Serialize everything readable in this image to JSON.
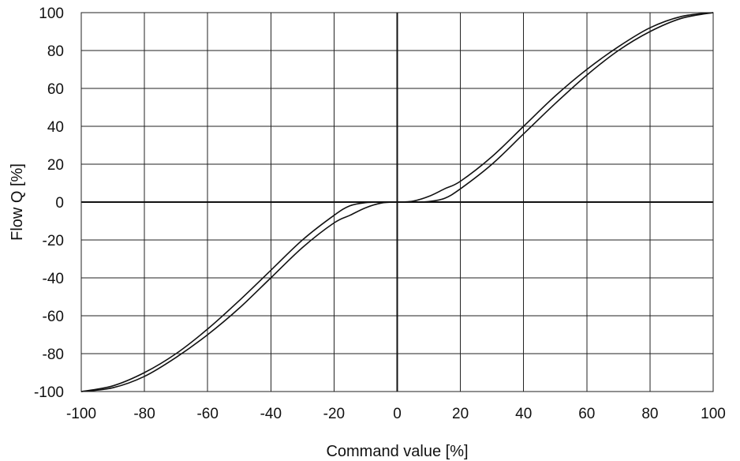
{
  "chart_data": {
    "type": "line",
    "title": "",
    "xlabel": "Command value [%]",
    "ylabel": "Flow Q [%]",
    "xlim": [
      -100,
      100
    ],
    "ylim": [
      -100,
      100
    ],
    "x_ticks": [
      "-100",
      "-80",
      "-60",
      "-40",
      "-20",
      "0",
      "20",
      "40",
      "60",
      "80",
      "100"
    ],
    "y_ticks": [
      "100",
      "80",
      "60",
      "40",
      "20",
      "0",
      "-20",
      "-40",
      "-60",
      "-80",
      "-100"
    ],
    "grid": true,
    "line_color": "#111111",
    "series": [
      {
        "x": [
          -100,
          -90,
          -80,
          -70,
          -60,
          -50,
          -40,
          -30,
          -20,
          -15,
          -10,
          -5,
          0,
          5,
          10,
          15,
          20,
          30,
          40,
          50,
          60,
          70,
          80,
          90,
          100
        ],
        "y": [
          -100,
          -97,
          -90,
          -80,
          -67,
          -52,
          -36,
          -20,
          -7,
          -2,
          -0.3,
          0,
          0,
          0.5,
          3,
          7,
          11,
          24,
          40,
          56,
          70,
          82,
          92,
          98,
          100
        ]
      },
      {
        "x": [
          -100,
          -90,
          -80,
          -70,
          -60,
          -50,
          -40,
          -30,
          -20,
          -15,
          -10,
          -5,
          0,
          5,
          10,
          15,
          20,
          30,
          40,
          50,
          60,
          70,
          80,
          90,
          100
        ],
        "y": [
          -100,
          -98,
          -92,
          -82,
          -70,
          -56,
          -40,
          -24,
          -11,
          -7,
          -3,
          -0.5,
          0,
          0,
          0.3,
          2,
          7,
          20,
          36,
          52,
          67,
          80,
          90,
          97,
          100
        ]
      }
    ]
  }
}
